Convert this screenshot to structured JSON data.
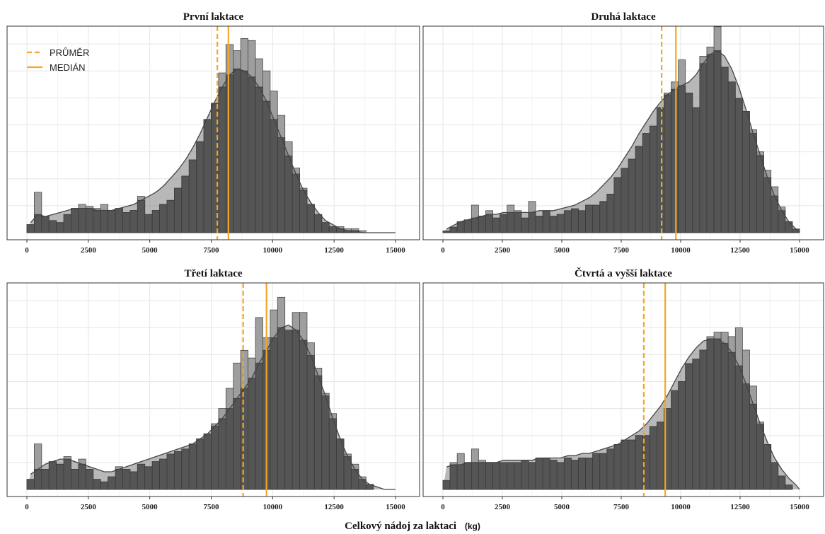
{
  "colors": {
    "accent": "#f5a623",
    "bar_dark": "#555555",
    "bar_light": "#9e9e9e",
    "density_fill": "#7d7d7d",
    "density_line": "#444444"
  },
  "chart_data": {
    "type": "bar",
    "xlabel": "Celkový nádoj za laktaci",
    "xlabel_unit": "(kg)",
    "legend": {
      "placement": "top-left",
      "entries": [
        {
          "label": "PRŮMĚR",
          "style": "dashed"
        },
        {
          "label": "MEDIÁN",
          "style": "solid"
        }
      ]
    },
    "xlim": [
      0,
      15000
    ],
    "xticks": [
      "0",
      "2500",
      "5000",
      "7500",
      "10000",
      "12500",
      "15000"
    ],
    "xtick_values": [
      0,
      2500,
      5000,
      7500,
      10000,
      12500,
      15000
    ],
    "bin_width": 300,
    "grid": true,
    "panels": [
      {
        "title": "První laktace",
        "mean": 7750,
        "median": 8200,
        "ymax": 100,
        "counts": [
          4,
          20,
          8,
          6,
          5,
          9,
          12,
          14,
          13,
          12,
          14,
          11,
          12,
          10,
          11,
          18,
          9,
          11,
          14,
          16,
          22,
          28,
          36,
          45,
          56,
          64,
          79,
          93,
          90,
          96,
          95,
          86,
          80,
          70,
          58,
          45,
          32,
          22,
          14,
          9,
          5,
          3,
          3,
          2,
          2,
          1,
          0,
          0,
          0,
          0
        ],
        "density": [
          5,
          9,
          8,
          9,
          10,
          11,
          12,
          12,
          12,
          11,
          11,
          11,
          12,
          13,
          14,
          16,
          18,
          20,
          23,
          27,
          31,
          36,
          42,
          49,
          57,
          65,
          72,
          78,
          81,
          80,
          77,
          72,
          65,
          56,
          47,
          38,
          29,
          21,
          15,
          10,
          6,
          4,
          2,
          1,
          1,
          0,
          0,
          0,
          0,
          0
        ]
      },
      {
        "title": "Druhá laktace",
        "mean": 9200,
        "median": 9800,
        "ymax": 110,
        "counts": [
          1,
          3,
          6,
          7,
          15,
          9,
          12,
          8,
          10,
          15,
          12,
          8,
          17,
          9,
          12,
          9,
          10,
          12,
          13,
          12,
          15,
          15,
          17,
          21,
          30,
          35,
          40,
          47,
          54,
          58,
          68,
          76,
          82,
          94,
          76,
          68,
          96,
          101,
          112,
          90,
          82,
          73,
          66,
          56,
          44,
          34,
          25,
          14,
          6,
          2
        ],
        "density": [
          2,
          4,
          6,
          7,
          8,
          9,
          10,
          10,
          11,
          11,
          11,
          11,
          11,
          12,
          12,
          12,
          13,
          14,
          15,
          17,
          19,
          22,
          26,
          30,
          35,
          41,
          47,
          54,
          60,
          66,
          71,
          75,
          78,
          80,
          82,
          86,
          92,
          97,
          99,
          96,
          89,
          79,
          67,
          54,
          42,
          30,
          20,
          12,
          6,
          2
        ]
      },
      {
        "title": "Třetí laktace",
        "mean": 8800,
        "median": 9750,
        "ymax": 80,
        "counts": [
          4,
          18,
          8,
          11,
          10,
          13,
          8,
          12,
          8,
          4,
          3,
          5,
          9,
          8,
          7,
          10,
          9,
          11,
          12,
          14,
          15,
          16,
          18,
          20,
          22,
          26,
          32,
          40,
          50,
          55,
          52,
          68,
          60,
          71,
          76,
          63,
          70,
          70,
          58,
          48,
          38,
          30,
          20,
          14,
          10,
          5,
          2,
          0,
          0,
          0
        ],
        "density": [
          6,
          8,
          10,
          11,
          12,
          12,
          11,
          10,
          9,
          8,
          7,
          7,
          8,
          9,
          10,
          11,
          12,
          13,
          14,
          15,
          16,
          17,
          18,
          20,
          22,
          25,
          28,
          32,
          36,
          40,
          44,
          50,
          55,
          60,
          64,
          65,
          63,
          59,
          53,
          45,
          37,
          28,
          20,
          13,
          8,
          4,
          2,
          1,
          0,
          0
        ]
      },
      {
        "title": "Čtvrtá a vyšší laktace",
        "mean": 8450,
        "median": 9350,
        "ymax": 90,
        "counts": [
          4,
          12,
          16,
          12,
          18,
          13,
          12,
          12,
          12,
          12,
          12,
          13,
          12,
          14,
          14,
          13,
          12,
          14,
          13,
          14,
          14,
          16,
          16,
          18,
          20,
          22,
          22,
          24,
          24,
          28,
          30,
          36,
          44,
          48,
          56,
          58,
          62,
          68,
          70,
          70,
          68,
          72,
          62,
          46,
          30,
          20,
          12,
          6,
          2,
          0
        ],
        "density": [
          10,
          11,
          11,
          12,
          12,
          12,
          12,
          12,
          13,
          13,
          13,
          13,
          13,
          14,
          14,
          14,
          14,
          15,
          15,
          16,
          16,
          17,
          18,
          19,
          20,
          22,
          24,
          26,
          29,
          33,
          37,
          42,
          48,
          54,
          59,
          63,
          66,
          67,
          67,
          65,
          61,
          55,
          47,
          38,
          29,
          21,
          14,
          9,
          5,
          2
        ]
      }
    ]
  }
}
